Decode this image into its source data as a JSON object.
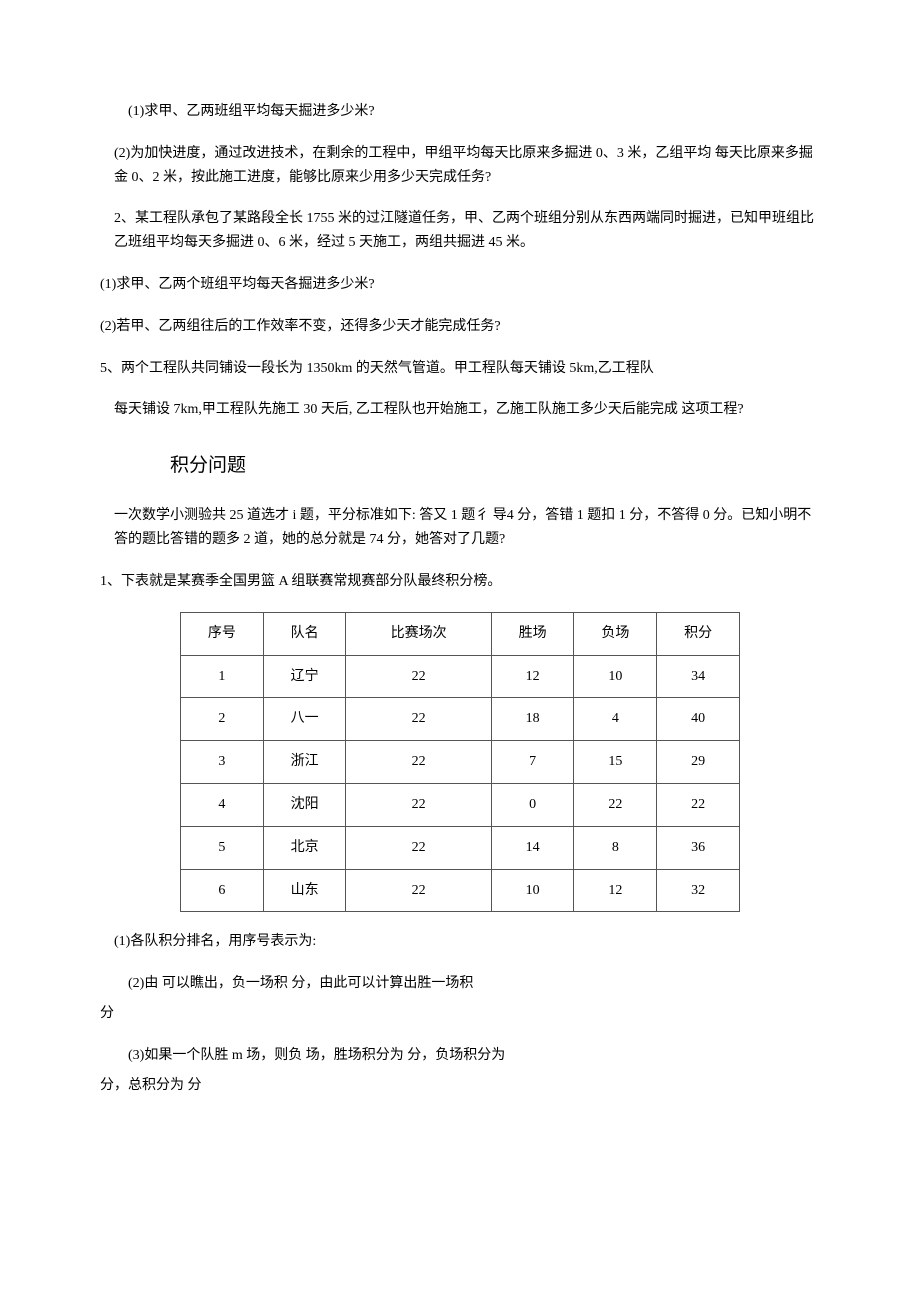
{
  "p1": "(1)求甲、乙两班组平均每天掘进多少米?",
  "p2": "(2)为加快进度，通过改进技术，在剩余的工程中，甲组平均每天比原来多掘进 0、3 米，乙组平均 每天比原来多掘金 0、2 米，按此施工进度，能够比原来少用多少天完成任务?",
  "p3": "2、某工程队承包了某路段全长 1755 米的过江隧道任务，甲、乙两个班组分别从东西两端同时掘进，已知甲班组比乙班组平均每天多掘进 0、6 米，经过 5 天施工，两组共掘进 45 米。",
  "p4": "(1)求甲、乙两个班组平均每天各掘进多少米?",
  "p5": "(2)若甲、乙两组往后的工作效率不变，还得多少天才能完成任务?",
  "p6": "5、两个工程队共同铺设一段长为 1350km 的天然气管道。甲工程队每天铺设 5km,乙工程队",
  "p7": "每天铺设 7km,甲工程队先施工 30 天后, 乙工程队也开始施工，乙施工队施工多少天后能完成 这项工程?",
  "section_title": "积分问题",
  "p8": "一次数学小测验共 25 道选才 i 题，平分标准如下: 答又 1 题彳 导4 分，答错 1 题扣 1 分，不答得 0 分。已知小明不答的题比答错的题多 2 道，她的总分就是 74 分，她答对了几题?",
  "p9": "1、下表就是某赛季全国男篮 A 组联赛常规赛部分队最终积分榜。",
  "table": {
    "headers": [
      "序号",
      "队名",
      "比赛场次",
      "胜场",
      "负场",
      "积分"
    ],
    "rows": [
      [
        "1",
        "辽宁",
        "22",
        "12",
        "10",
        "34"
      ],
      [
        "2",
        "八一",
        "22",
        "18",
        "4",
        "40"
      ],
      [
        "3",
        "浙江",
        "22",
        "7",
        "15",
        "29"
      ],
      [
        "4",
        "沈阳",
        "22",
        "0",
        "22",
        "22"
      ],
      [
        "5",
        "北京",
        "22",
        "14",
        "8",
        "36"
      ],
      [
        "6",
        "山东",
        "22",
        "10",
        "12",
        "32"
      ]
    ]
  },
  "p10": "(1)各队积分排名，用序号表示为:",
  "p11": "(2)由 可以瞧出，负一场积 分，由此可以计算出胜一场积",
  "p12": "分",
  "p13": "(3)如果一个队胜 m 场，则负 场，胜场积分为 分，负场积分为",
  "p14": "分，总积分为 分"
}
